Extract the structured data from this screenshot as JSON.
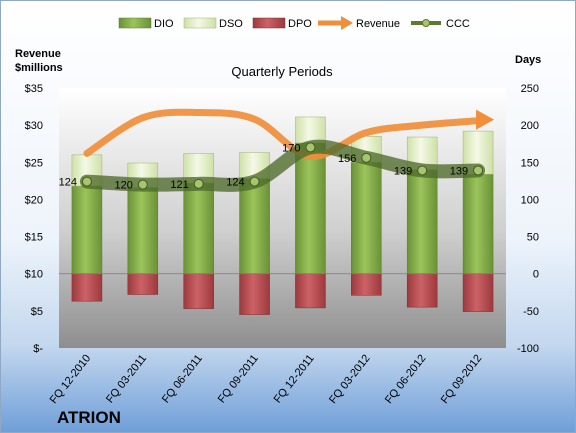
{
  "chart_data": {
    "type": "bar",
    "title": "Quarterly Periods",
    "company": "ATRION",
    "y_left_label_line1": "Revenue",
    "y_left_label_line2": "$millions",
    "y_right_label": "Days",
    "categories": [
      "FQ 12-2010",
      "FQ 03-2011",
      "FQ 06-2011",
      "FQ 09-2011",
      "FQ 12-2011",
      "FQ 03-2012",
      "FQ 06-2012",
      "FQ 09-2012"
    ],
    "left_axis": {
      "min": 0,
      "max": 35,
      "step": 5,
      "tick_labels": [
        "$-",
        "$5",
        "$10",
        "$15",
        "$20",
        "$25",
        "$30",
        "$35"
      ]
    },
    "right_axis": {
      "min": -100,
      "max": 250,
      "step": 50,
      "tick_labels": [
        "-100",
        "-50",
        "0",
        "50",
        "100",
        "150",
        "200",
        "250"
      ]
    },
    "series": [
      {
        "name": "DIO",
        "kind": "stacked-bar",
        "axis": "right",
        "values": [
          118,
          116,
          122,
          128,
          176,
          150,
          140,
          134
        ],
        "color": "#7fa845"
      },
      {
        "name": "DSO",
        "kind": "stacked-bar",
        "axis": "right",
        "values": [
          42,
          33,
          40,
          35,
          35,
          35,
          44,
          58
        ],
        "color": "#e4f0c8"
      },
      {
        "name": "DPO",
        "kind": "bar",
        "axis": "right",
        "values": [
          -37,
          -28,
          -47,
          -55,
          -46,
          -29,
          -45,
          -51
        ],
        "color": "#b4474a"
      },
      {
        "name": "Revenue",
        "kind": "line",
        "axis": "left",
        "values": [
          26.2,
          31.0,
          31.7,
          30.8,
          25.8,
          29.0,
          30.0,
          30.6
        ],
        "color": "#f08e3a"
      },
      {
        "name": "CCC",
        "kind": "line",
        "axis": "right",
        "values": [
          124,
          120,
          121,
          124,
          170,
          156,
          139,
          139
        ],
        "color": "#5d7a33"
      }
    ],
    "ccc_labels": [
      "124",
      "120",
      "121",
      "124",
      "170",
      "156",
      "139",
      "139"
    ],
    "legend": [
      "DIO",
      "DSO",
      "DPO",
      "Revenue",
      "CCC"
    ],
    "legend_position": "top",
    "grid": false
  }
}
